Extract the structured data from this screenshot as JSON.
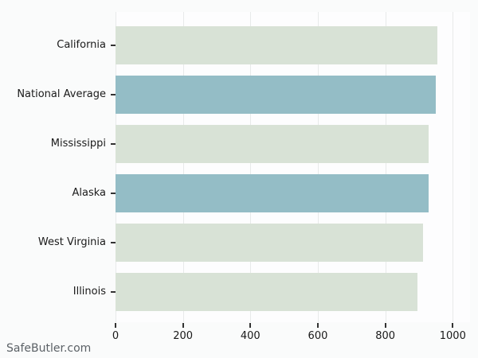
{
  "footer": {
    "brand": "SafeButler.com"
  },
  "colors": {
    "figure_bg": "#fafbfb",
    "plot_bg": "#fdfdfe",
    "gridline": "#e8eaea",
    "tick_mark": "#333333",
    "tick_label_text": "#1a1a1a",
    "footer_text": "#5b6166",
    "bar_light": "#d8e2d6",
    "bar_accent": "#94bdc6"
  },
  "chart_data": {
    "type": "bar",
    "orientation": "horizontal",
    "title": "",
    "xlabel": "",
    "ylabel": "",
    "legend": "none",
    "grid": "vertical-only",
    "xlim": [
      0,
      1000
    ],
    "x_ticks": [
      0,
      200,
      400,
      600,
      800,
      1000
    ],
    "x_tick_labels": [
      "0",
      "200",
      "400",
      "600",
      "800",
      "1000"
    ],
    "categories": [
      "California",
      "National Average",
      "Mississippi",
      "Alaska",
      "West Virginia",
      "Illinois"
    ],
    "values": [
      955,
      950,
      929,
      928,
      912,
      896
    ],
    "bar_colors": [
      "#d8e2d6",
      "#94bdc6",
      "#d8e2d6",
      "#94bdc6",
      "#d8e2d6",
      "#d8e2d6"
    ]
  }
}
